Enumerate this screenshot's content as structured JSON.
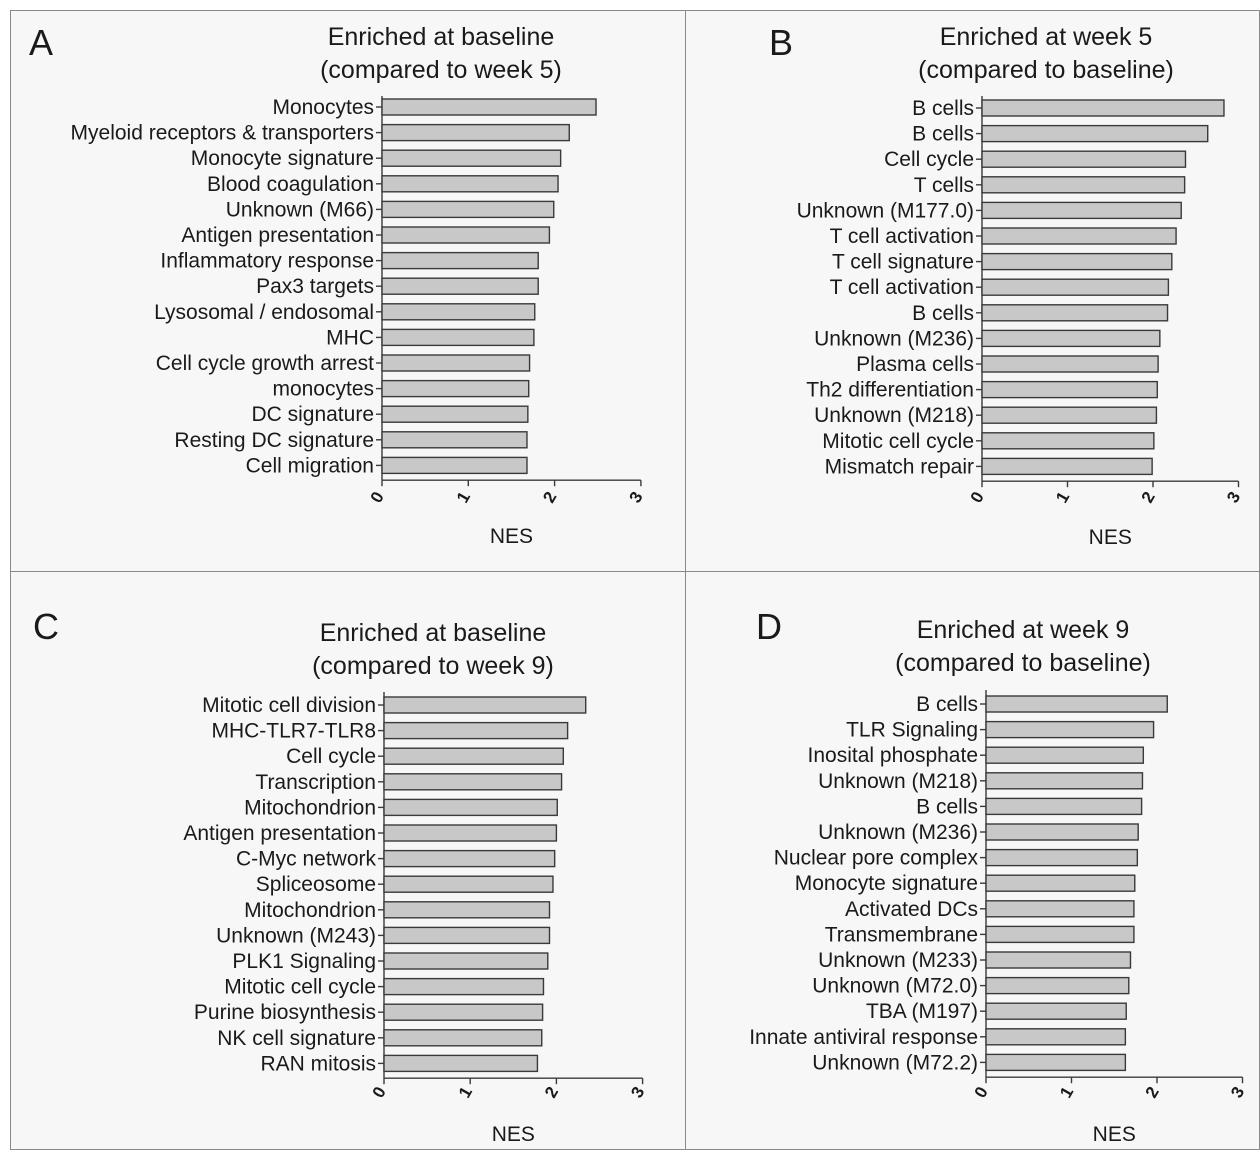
{
  "chart_data": [
    {
      "panel": "A",
      "type": "bar",
      "orientation": "horizontal",
      "title": [
        "Enriched at baseline",
        "(compared to week 5)"
      ],
      "categories": [
        "Monocytes",
        "Myeloid receptors & transporters",
        "Monocyte signature",
        "Blood coagulation",
        "Unknown (M66)",
        "Antigen presentation",
        "Inflammatory response",
        "Pax3 targets",
        "Lysosomal / endosomal",
        "MHC",
        "Cell cycle growth arrest",
        "monocytes",
        "DC signature",
        "Resting DC signature",
        "Cell migration"
      ],
      "values": [
        2.48,
        2.17,
        2.07,
        2.04,
        1.99,
        1.94,
        1.81,
        1.81,
        1.77,
        1.76,
        1.71,
        1.7,
        1.69,
        1.68,
        1.68
      ],
      "xlabel": "NES",
      "ylabel": "",
      "xlim": [
        0,
        3
      ],
      "xticks": [
        "0",
        "1",
        "2",
        "3"
      ]
    },
    {
      "panel": "B",
      "type": "bar",
      "orientation": "horizontal",
      "title": [
        "Enriched at week 5",
        "(compared to baseline)"
      ],
      "categories": [
        "B cells",
        "B cells",
        "Cell cycle",
        "T cells",
        "Unknown (M177.0)",
        "T cell activation",
        "T cell signature",
        "T cell activation",
        "B cells",
        "Unknown (M236)",
        "Plasma cells",
        "Th2 differentiation",
        "Unknown (M218)",
        "Mitotic cell cycle",
        "Mismatch repair"
      ],
      "values": [
        2.83,
        2.64,
        2.38,
        2.37,
        2.33,
        2.27,
        2.22,
        2.18,
        2.17,
        2.08,
        2.06,
        2.05,
        2.04,
        2.01,
        1.99
      ],
      "xlabel": "NES",
      "ylabel": "",
      "xlim": [
        0,
        3
      ],
      "xticks": [
        "0",
        "1",
        "2",
        "3"
      ]
    },
    {
      "panel": "C",
      "type": "bar",
      "orientation": "horizontal",
      "title": [
        "Enriched at baseline",
        "(compared to week 9)"
      ],
      "categories": [
        "Mitotic cell division",
        "MHC-TLR7-TLR8",
        "Cell cycle",
        "Transcription",
        "Mitochondrion",
        "Antigen presentation",
        "C-Myc network",
        "Spliceosome",
        "Mitochondrion",
        "Unknown (M243)",
        "PLK1 Signaling",
        "Mitotic cell cycle",
        "Purine biosynthesis",
        "NK cell signature",
        "RAN mitosis"
      ],
      "values": [
        2.34,
        2.13,
        2.08,
        2.06,
        2.01,
        2.0,
        1.98,
        1.96,
        1.92,
        1.92,
        1.9,
        1.85,
        1.84,
        1.83,
        1.78
      ],
      "xlabel": "NES",
      "ylabel": "",
      "xlim": [
        0,
        3
      ],
      "xticks": [
        "0",
        "1",
        "2",
        "3"
      ]
    },
    {
      "panel": "D",
      "type": "bar",
      "orientation": "horizontal",
      "title": [
        "Enriched at week 9",
        "(compared to baseline)"
      ],
      "categories": [
        "B cells",
        "TLR Signaling",
        "Inosital phosphate",
        "Unknown (M218)",
        "B cells",
        "Unknown (M236)",
        "Nuclear pore complex",
        "Monocyte signature",
        "Activated DCs",
        "Transmembrane",
        "Unknown (M233)",
        "Unknown (M72.0)",
        "TBA (M197)",
        "Innate antiviral response",
        "Unknown (M72.2)"
      ],
      "values": [
        2.12,
        1.96,
        1.84,
        1.83,
        1.82,
        1.78,
        1.77,
        1.74,
        1.73,
        1.73,
        1.69,
        1.67,
        1.64,
        1.63,
        1.63
      ],
      "xlabel": "NES",
      "ylabel": "",
      "xlim": [
        0,
        3
      ],
      "xticks": [
        "0",
        "1",
        "2",
        "3"
      ]
    }
  ]
}
